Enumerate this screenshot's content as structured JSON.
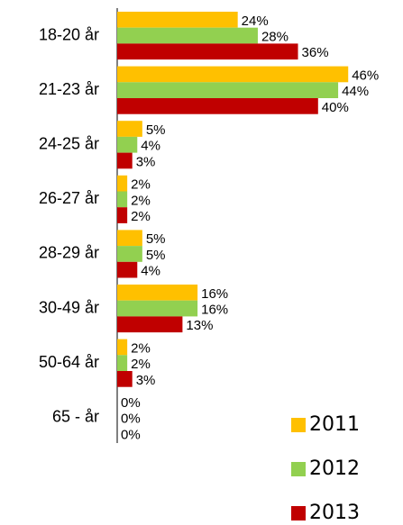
{
  "chart_data": {
    "type": "hbar",
    "categories": [
      "18-20 år",
      "21-23 år",
      "24-25 år",
      "26-27 år",
      "28-29 år",
      "30-49 år",
      "50-64 år",
      "65 - år"
    ],
    "series": [
      {
        "name": "2011",
        "color": "#ffc000",
        "values": [
          24,
          46,
          5,
          2,
          5,
          16,
          2,
          0
        ],
        "value_labels": [
          "24%",
          "46%",
          "5%",
          "2%",
          "5%",
          "16%",
          "2%",
          "0%"
        ]
      },
      {
        "name": "2012",
        "color": "#92d050",
        "values": [
          28,
          44,
          4,
          2,
          5,
          16,
          2,
          0
        ],
        "value_labels": [
          "28%",
          "44%",
          "4%",
          "2%",
          "5%",
          "16%",
          "2%",
          "0%"
        ]
      },
      {
        "name": "2013",
        "color": "#c00000",
        "values": [
          36,
          40,
          3,
          2,
          4,
          13,
          3,
          0
        ],
        "value_labels": [
          "36%",
          "40%",
          "3%",
          "2%",
          "4%",
          "13%",
          "3%",
          "0%"
        ]
      }
    ],
    "legend": "bottom-right"
  }
}
